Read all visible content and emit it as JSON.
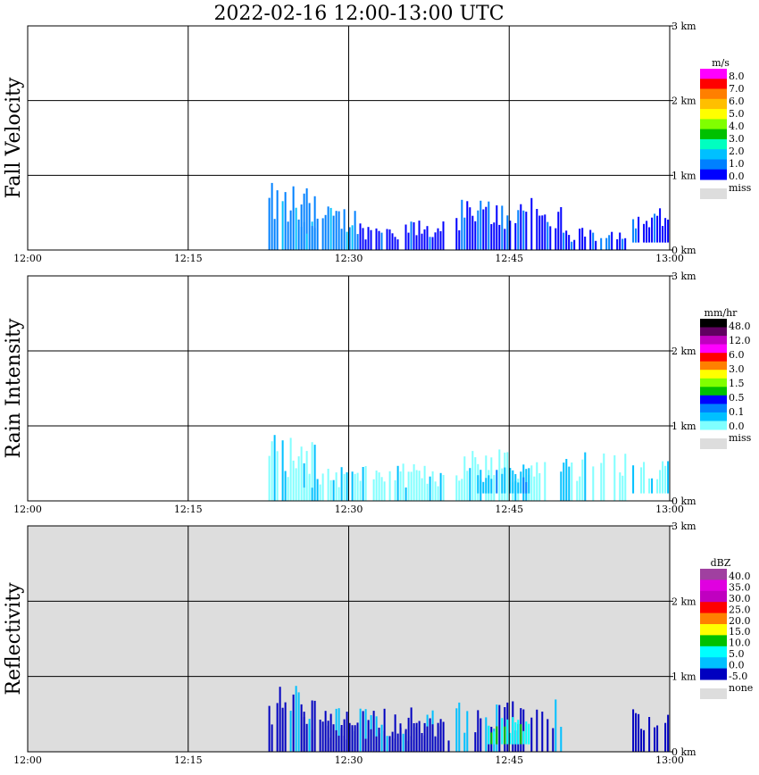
{
  "title": "2022-02-16   12:00-13:00 UTC",
  "chart_data": [
    {
      "type": "heatmap",
      "title": "",
      "ylabel": "Fall Velocity",
      "x_ticks": [
        "12:00",
        "12:15",
        "12:30",
        "12:45",
        "13:00"
      ],
      "y_ticks": [
        "0 km",
        "1 km",
        "2 km",
        "3 km"
      ],
      "ylim_km": [
        0,
        3.0
      ],
      "xlim_min": [
        0,
        60
      ],
      "legend": {
        "unit": "m/s",
        "labels": [
          "8.0",
          "7.0",
          "6.0",
          "5.0",
          "4.0",
          "3.0",
          "2.0",
          "1.0",
          "0.0"
        ],
        "colors": [
          "#ff00ff",
          "#ff0000",
          "#ff7f00",
          "#ffbf00",
          "#ffff00",
          "#80ff00",
          "#00c000",
          "#00ffc0",
          "#00c0ff",
          "#0080ff",
          "#0000ff"
        ],
        "missing_label": "miss",
        "missing_color": "#dddddd"
      },
      "background": "#ffffff",
      "echo_regions": [
        {
          "t0": 22.5,
          "t1": 27.0,
          "h0": 0.0,
          "h1": 0.9,
          "level": 9
        },
        {
          "t0": 25.5,
          "t1": 31.0,
          "h0": 0.0,
          "h1": 0.6,
          "level": 9
        },
        {
          "t0": 31.0,
          "t1": 39.0,
          "h0": 0.0,
          "h1": 0.4,
          "level": 10
        },
        {
          "t0": 40.0,
          "t1": 50.0,
          "h0": 0.0,
          "h1": 0.7,
          "level": 10
        },
        {
          "t0": 50.0,
          "t1": 56.0,
          "h0": 0.0,
          "h1": 0.3,
          "level": 10
        },
        {
          "t0": 56.5,
          "t1": 60.0,
          "h0": 0.1,
          "h1": 0.6,
          "level": 10
        }
      ]
    },
    {
      "type": "heatmap",
      "title": "",
      "ylabel": "Rain Intensity",
      "x_ticks": [
        "12:00",
        "12:15",
        "12:30",
        "12:45",
        "13:00"
      ],
      "y_ticks": [
        "0 km",
        "1 km",
        "2 km",
        "3 km"
      ],
      "ylim_km": [
        0,
        3.0
      ],
      "xlim_min": [
        0,
        60
      ],
      "legend": {
        "unit": "mm/hr",
        "labels": [
          "48.0",
          "12.0",
          "6.0",
          "3.0",
          "1.5",
          "0.5",
          "0.1",
          "0.0"
        ],
        "colors": [
          "#000000",
          "#600060",
          "#c000c0",
          "#ff00ff",
          "#ff0000",
          "#ff8000",
          "#ffff00",
          "#80ff00",
          "#00c000",
          "#0000ff",
          "#0080ff",
          "#00c0ff",
          "#80ffff"
        ],
        "missing_label": "miss",
        "missing_color": "#dddddd"
      },
      "background": "#ffffff",
      "echo_regions": [
        {
          "t0": 22.5,
          "t1": 27.0,
          "h0": 0.0,
          "h1": 0.9,
          "level": 12
        },
        {
          "t0": 25.5,
          "t1": 39.0,
          "h0": 0.0,
          "h1": 0.5,
          "level": 12
        },
        {
          "t0": 40.0,
          "t1": 56.0,
          "h0": 0.0,
          "h1": 0.7,
          "level": 12
        },
        {
          "t0": 42.0,
          "t1": 47.0,
          "h0": 0.1,
          "h1": 0.5,
          "level": 11
        },
        {
          "t0": 56.5,
          "t1": 60.0,
          "h0": 0.1,
          "h1": 0.6,
          "level": 12
        }
      ]
    },
    {
      "type": "heatmap",
      "title": "",
      "ylabel": "Reflectivity",
      "x_ticks": [
        "12:00",
        "12:15",
        "12:30",
        "12:45",
        "13:00"
      ],
      "y_ticks": [
        "0 km",
        "1 km",
        "2 km",
        "3 km"
      ],
      "ylim_km": [
        0,
        3.0
      ],
      "xlim_min": [
        0,
        60
      ],
      "legend": {
        "unit": "dBZ",
        "labels": [
          "40.0",
          "35.0",
          "30.0",
          "25.0",
          "20.0",
          "15.0",
          "10.0",
          "5.0",
          "0.0",
          "-5.0"
        ],
        "colors": [
          "#a040a0",
          "#e000e0",
          "#c000c0",
          "#ff0000",
          "#ff8000",
          "#ffff00",
          "#00c000",
          "#00ffff",
          "#00c0ff",
          "#0000c0"
        ],
        "missing_label": "none",
        "missing_color": "#dddddd"
      },
      "background": "#dddddd",
      "echo_regions": [
        {
          "t0": 22.5,
          "t1": 27.0,
          "h0": 0.0,
          "h1": 0.9,
          "level": 9
        },
        {
          "t0": 25.5,
          "t1": 39.0,
          "h0": 0.0,
          "h1": 0.6,
          "level": 9
        },
        {
          "t0": 28.0,
          "t1": 40.0,
          "h0": 0.0,
          "h1": 0.4,
          "level": 10
        },
        {
          "t0": 40.0,
          "t1": 50.0,
          "h0": 0.0,
          "h1": 0.7,
          "level": 9
        },
        {
          "t0": 43.0,
          "t1": 47.0,
          "h0": 0.1,
          "h1": 0.5,
          "level": 7
        },
        {
          "t0": 56.5,
          "t1": 60.0,
          "h0": 0.0,
          "h1": 0.6,
          "level": 9
        }
      ]
    }
  ]
}
